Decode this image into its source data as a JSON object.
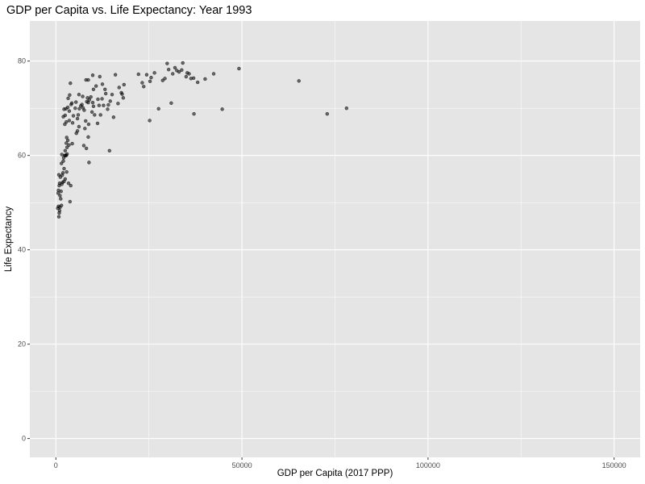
{
  "chart_data": {
    "type": "scatter",
    "title": "GDP per Capita vs. Life Expectancy: Year 1993",
    "xlabel": "GDP per Capita (2017 PPP)",
    "ylabel": "Life Expectancy",
    "xlim": [
      -7000,
      157000
    ],
    "ylim": [
      -4,
      88.5
    ],
    "x_ticks": [
      0,
      50000,
      100000,
      150000
    ],
    "x_tick_labels": [
      "0",
      "50000",
      "100000",
      "150000"
    ],
    "x_minor_ticks": [
      25000,
      75000,
      125000
    ],
    "y_ticks": [
      0,
      20,
      40,
      60,
      80
    ],
    "y_tick_labels": [
      "0",
      "20",
      "40",
      "60",
      "80"
    ],
    "y_minor_ticks": [
      10,
      30,
      50,
      70
    ],
    "grid": true,
    "legend": "none",
    "colors": {
      "panel": "#e5e5e5",
      "point": "#000000",
      "grid": "#ffffff"
    },
    "points": [
      [
        500,
        48.8
      ],
      [
        700,
        49.2
      ],
      [
        800,
        47.0
      ],
      [
        900,
        47.8
      ],
      [
        1000,
        48.3
      ],
      [
        1100,
        49.0
      ],
      [
        600,
        52.0
      ],
      [
        700,
        52.6
      ],
      [
        900,
        53.6
      ],
      [
        1000,
        54.1
      ],
      [
        1200,
        55.4
      ],
      [
        800,
        55.9
      ],
      [
        1500,
        49.4
      ],
      [
        1300,
        50.8
      ],
      [
        1100,
        51.5
      ],
      [
        1400,
        52.4
      ],
      [
        1600,
        53.9
      ],
      [
        1800,
        54.3
      ],
      [
        1700,
        55.8
      ],
      [
        1900,
        56.3
      ],
      [
        2200,
        57.2
      ],
      [
        1500,
        58.3
      ],
      [
        2000,
        58.8
      ],
      [
        2100,
        59.5
      ],
      [
        2400,
        60.0
      ],
      [
        2600,
        60.0
      ],
      [
        2800,
        60.0
      ],
      [
        1600,
        60.2
      ],
      [
        3000,
        60.3
      ],
      [
        2500,
        61.0
      ],
      [
        3000,
        61.7
      ],
      [
        2800,
        62.6
      ],
      [
        3200,
        63.2
      ],
      [
        2900,
        63.8
      ],
      [
        3500,
        62.2
      ],
      [
        4400,
        62.5
      ],
      [
        2200,
        54.5
      ],
      [
        2500,
        55.0
      ],
      [
        3400,
        54.1
      ],
      [
        4000,
        53.6
      ],
      [
        3800,
        50.2
      ],
      [
        2900,
        56.5
      ],
      [
        2400,
        66.6
      ],
      [
        2800,
        67.1
      ],
      [
        3600,
        67.4
      ],
      [
        4500,
        66.9
      ],
      [
        2000,
        68.2
      ],
      [
        2500,
        68.5
      ],
      [
        2200,
        69.8
      ],
      [
        2700,
        69.9
      ],
      [
        3200,
        70.2
      ],
      [
        3600,
        69.4
      ],
      [
        4100,
        70.8
      ],
      [
        3300,
        72.1
      ],
      [
        3700,
        72.8
      ],
      [
        3900,
        75.3
      ],
      [
        4300,
        71.1
      ],
      [
        5200,
        70.0
      ],
      [
        4700,
        68.4
      ],
      [
        5500,
        64.7
      ],
      [
        5800,
        65.2
      ],
      [
        6200,
        66.1
      ],
      [
        5800,
        67.8
      ],
      [
        6000,
        68.6
      ],
      [
        6300,
        69.9
      ],
      [
        5400,
        71.3
      ],
      [
        6200,
        72.9
      ],
      [
        7200,
        72.5
      ],
      [
        7000,
        70.8
      ],
      [
        6700,
        70.5
      ],
      [
        7300,
        70.1
      ],
      [
        7600,
        69.6
      ],
      [
        8000,
        67.3
      ],
      [
        8800,
        66.6
      ],
      [
        7800,
        65.7
      ],
      [
        8700,
        63.9
      ],
      [
        8900,
        58.5
      ],
      [
        8200,
        61.5
      ],
      [
        7500,
        62.1
      ],
      [
        8300,
        71.4
      ],
      [
        8700,
        71.2
      ],
      [
        9000,
        71.8
      ],
      [
        8500,
        72.2
      ],
      [
        8100,
        76.0
      ],
      [
        8700,
        76.0
      ],
      [
        9400,
        72.4
      ],
      [
        9900,
        71.2
      ],
      [
        10100,
        70.4
      ],
      [
        9700,
        69.2
      ],
      [
        10400,
        68.6
      ],
      [
        10100,
        74.0
      ],
      [
        10800,
        74.7
      ],
      [
        9900,
        77.0
      ],
      [
        11300,
        71.9
      ],
      [
        11600,
        70.6
      ],
      [
        12400,
        72.0
      ],
      [
        12800,
        70.6
      ],
      [
        12000,
        68.6
      ],
      [
        11200,
        66.8
      ],
      [
        11800,
        76.7
      ],
      [
        12500,
        75.1
      ],
      [
        13200,
        74.0
      ],
      [
        13400,
        73.1
      ],
      [
        13900,
        69.8
      ],
      [
        14100,
        70.7
      ],
      [
        14600,
        71.5
      ],
      [
        15100,
        72.9
      ],
      [
        15500,
        68.1
      ],
      [
        14400,
        61.0
      ],
      [
        16000,
        77.1
      ],
      [
        17000,
        74.4
      ],
      [
        17600,
        73.3
      ],
      [
        18100,
        72.2
      ],
      [
        18300,
        75.0
      ],
      [
        16700,
        71.0
      ],
      [
        17800,
        73.0
      ],
      [
        22200,
        77.2
      ],
      [
        23200,
        75.4
      ],
      [
        23600,
        74.6
      ],
      [
        24400,
        77.1
      ],
      [
        25300,
        75.7
      ],
      [
        25600,
        76.5
      ],
      [
        25200,
        67.4
      ],
      [
        26500,
        77.5
      ],
      [
        27600,
        69.9
      ],
      [
        28700,
        75.9
      ],
      [
        29300,
        76.3
      ],
      [
        29900,
        79.5
      ],
      [
        30300,
        78.2
      ],
      [
        31000,
        71.1
      ],
      [
        31400,
        77.3
      ],
      [
        32000,
        78.6
      ],
      [
        32500,
        78.0
      ],
      [
        33100,
        77.7
      ],
      [
        33800,
        78.1
      ],
      [
        34100,
        79.6
      ],
      [
        35000,
        76.7
      ],
      [
        35300,
        77.5
      ],
      [
        35800,
        77.3
      ],
      [
        36300,
        76.3
      ],
      [
        37000,
        76.4
      ],
      [
        37100,
        68.8
      ],
      [
        38100,
        75.5
      ],
      [
        40100,
        76.2
      ],
      [
        42400,
        77.3
      ],
      [
        44700,
        69.8
      ],
      [
        49200,
        78.4
      ],
      [
        65300,
        75.8
      ],
      [
        72900,
        68.8
      ],
      [
        78100,
        70.0
      ]
    ]
  }
}
